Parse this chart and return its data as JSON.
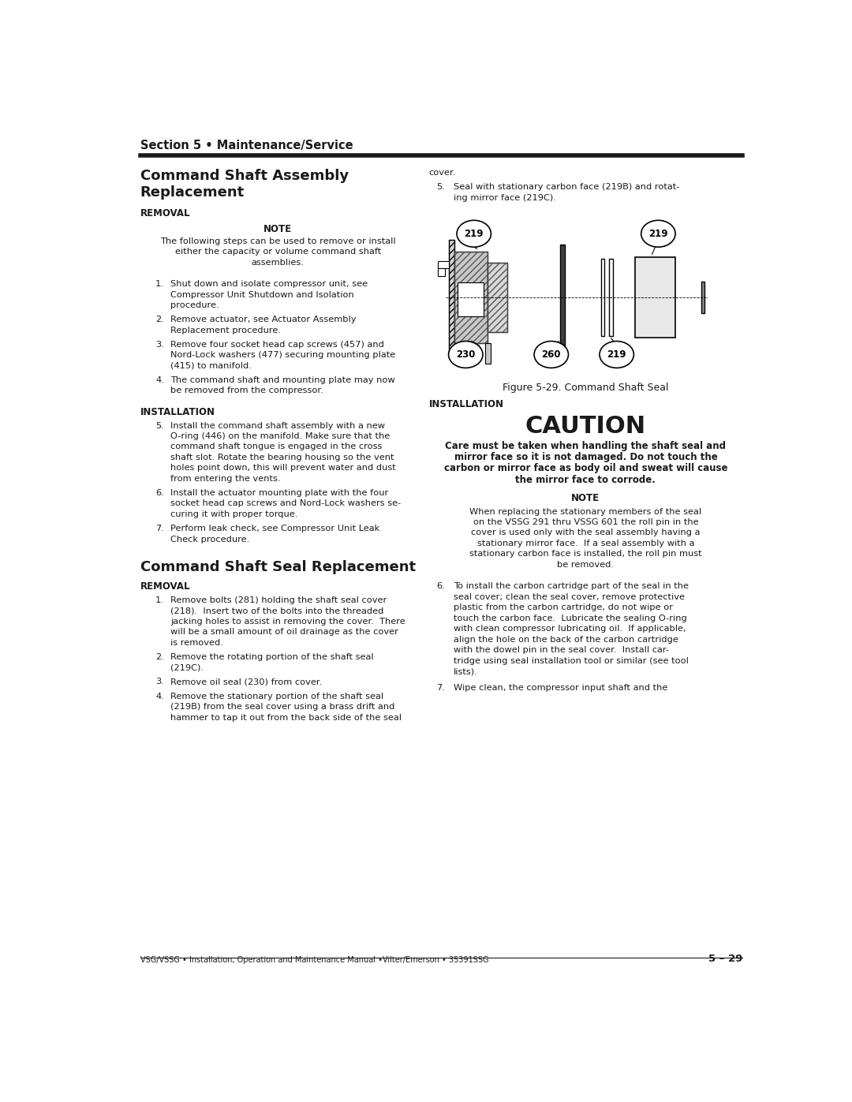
{
  "page_width": 10.8,
  "page_height": 13.97,
  "bg_color": "#ffffff",
  "text_color": "#1a1a1a",
  "header_title": "Section 5 • Maintenance/Service",
  "footer_text_left": "VSG/VSSG • Installation, Operation and Maintenance Manual •Vilter/Emerson • 35391SSG",
  "footer_text_right": "5 – 29",
  "col1_heading1": "Command Shaft Assembly",
  "col1_heading2": "Replacement",
  "removal_heading": "REMOVAL",
  "note_heading": "NOTE",
  "note_text_lines": [
    "The following steps can be used to remove or install",
    "either the capacity or volume command shaft",
    "assemblies."
  ],
  "removal_steps": [
    [
      "1.",
      "Shut down and isolate compressor unit, see",
      "Compressor Unit Shutdown and Isolation",
      "procedure."
    ],
    [
      "2.",
      "Remove actuator, see Actuator Assembly",
      "Replacement procedure."
    ],
    [
      "3.",
      "Remove four socket head cap screws (457) and",
      "Nord-Lock washers (477) securing mounting plate",
      "(415) to manifold."
    ],
    [
      "4.",
      "The command shaft and mounting plate may now",
      "be removed from the compressor."
    ]
  ],
  "installation_heading": "INSTALLATION",
  "install_steps": [
    [
      "5.",
      "Install the command shaft assembly with a new",
      "O-ring (446) on the manifold. Make sure that the",
      "command shaft tongue is engaged in the cross",
      "shaft slot. Rotate the bearing housing so the vent",
      "holes point down, this will prevent water and dust",
      "from entering the vents."
    ],
    [
      "6.",
      "Install the actuator mounting plate with the four",
      "socket head cap screws and Nord-Lock washers se-",
      "curing it with proper torque."
    ],
    [
      "7.",
      "Perform leak check, see Compressor Unit Leak",
      "Check procedure."
    ]
  ],
  "seal_heading": "Command Shaft Seal Replacement",
  "seal_removal_heading": "REMOVAL",
  "seal_removal_steps": [
    [
      "1.",
      "Remove bolts (281) holding the shaft seal cover",
      "(218).  Insert two of the bolts into the threaded",
      "jacking holes to assist in removing the cover.  There",
      "will be a small amount of oil drainage as the cover",
      "is removed."
    ],
    [
      "2.",
      "Remove the rotating portion of the shaft seal",
      "(219C)."
    ],
    [
      "3.",
      "Remove oil seal (230) from cover."
    ],
    [
      "4.",
      "Remove the stationary portion of the shaft seal",
      "(219B) from the seal cover using a brass drift and",
      "hammer to tap it out from the back side of the seal"
    ]
  ],
  "col2_cover": "cover.",
  "col2_step5_lines": [
    "5.",
    "Seal with stationary carbon face (219B) and rotat-",
    "ing mirror face (219C)."
  ],
  "figure_caption": "Figure 5-29. Command Shaft Seal",
  "col2_installation": "INSTALLATION",
  "caution_heading": "CAUTION",
  "caution_lines": [
    "Care must be taken when handling the shaft seal and",
    "mirror face so it is not damaged. Do not touch the",
    "carbon or mirror face as body oil and sweat will cause",
    "the mirror face to corrode."
  ],
  "col2_note_heading": "NOTE",
  "col2_note_lines": [
    "When replacing the stationary members of the seal",
    "on the VSSG 291 thru VSSG 601 the roll pin in the",
    "cover is used only with the seal assembly having a",
    "stationary mirror face.  If a seal assembly with a",
    "stationary carbon face is installed, the roll pin must",
    "be removed."
  ],
  "col2_step6_lines": [
    "6.",
    "To install the carbon cartridge part of the seal in the",
    "seal cover; clean the seal cover, remove protective",
    "plastic from the carbon cartridge, do not wipe or",
    "touch the carbon face.  Lubricate the sealing O-ring",
    "with clean compressor lubricating oil.  If applicable,",
    "align the hole on the back of the carbon cartridge",
    "with the dowel pin in the seal cover.  Install car-",
    "tridge using seal installation tool or similar (see tool",
    "lists)."
  ],
  "col2_step7_lines": [
    "7.",
    "Wipe clean, the compressor input shaft and the"
  ]
}
